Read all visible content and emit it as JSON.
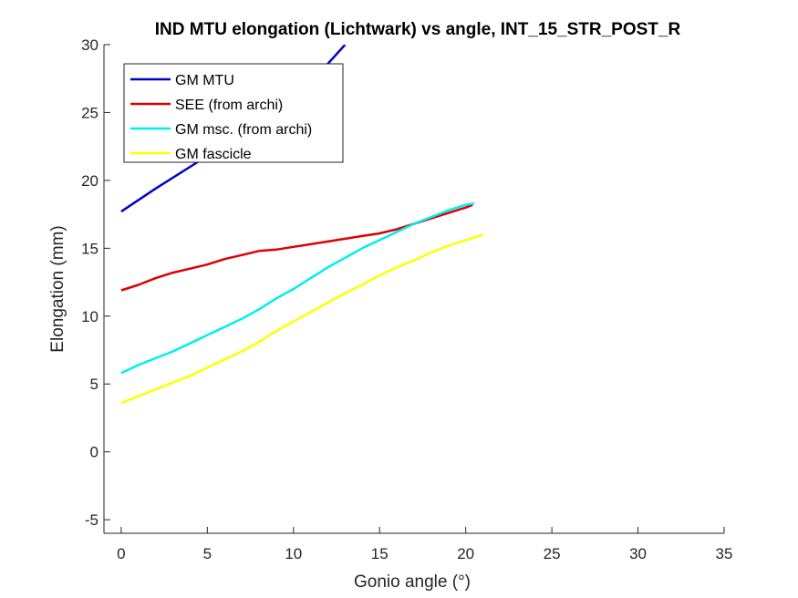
{
  "chart_data": {
    "type": "line",
    "title": "IND MTU elongation (Lichtwark) vs angle, INT_15_STR_POST_R",
    "xlabel": "Gonio angle (°)",
    "ylabel": "Elongation (mm)",
    "xlim": [
      -1,
      35
    ],
    "ylim": [
      -6,
      30
    ],
    "xticks": [
      "0",
      "5",
      "10",
      "15",
      "20",
      "25",
      "30",
      "35"
    ],
    "yticks": [
      "-5",
      "0",
      "5",
      "10",
      "15",
      "20",
      "25",
      "30"
    ],
    "xtick_values": [
      0,
      5,
      10,
      15,
      20,
      25,
      30,
      35
    ],
    "ytick_values": [
      -5,
      0,
      5,
      10,
      15,
      20,
      25,
      30
    ],
    "grid": false,
    "legend_position": "top-left",
    "series": [
      {
        "name": "GM MTU",
        "color": "#0000cc",
        "x": [
          0,
          2,
          4,
          6,
          8,
          10,
          12,
          13
        ],
        "y": [
          17.7,
          19.4,
          21.0,
          22.6,
          24.3,
          26.2,
          28.6,
          30.0
        ]
      },
      {
        "name": "SEE (from archi)",
        "color": "#dd0000",
        "x": [
          0,
          1,
          2,
          3,
          4,
          5,
          6,
          7,
          8,
          9,
          10,
          11,
          12,
          13,
          14,
          15,
          16,
          17,
          18,
          19,
          20,
          20.4
        ],
        "y": [
          11.9,
          12.3,
          12.8,
          13.2,
          13.5,
          13.8,
          14.2,
          14.5,
          14.8,
          14.9,
          15.1,
          15.3,
          15.5,
          15.7,
          15.9,
          16.1,
          16.4,
          16.8,
          17.2,
          17.6,
          18.0,
          18.2
        ]
      },
      {
        "name": "GM msc. (from archi)",
        "color": "#00eeee",
        "x": [
          0,
          1,
          2,
          3,
          4,
          5,
          6,
          7,
          8,
          9,
          10,
          11,
          12,
          13,
          14,
          15,
          16,
          17,
          18,
          19,
          20,
          20.5
        ],
        "y": [
          5.8,
          6.4,
          6.9,
          7.4,
          8.0,
          8.6,
          9.2,
          9.8,
          10.5,
          11.3,
          12.0,
          12.8,
          13.6,
          14.3,
          15.0,
          15.6,
          16.2,
          16.8,
          17.3,
          17.8,
          18.2,
          18.3
        ]
      },
      {
        "name": "GM fascicle",
        "color": "#ffff00",
        "x": [
          0,
          1,
          2,
          3,
          4,
          5,
          6,
          7,
          8,
          9,
          10,
          11,
          12,
          13,
          14,
          15,
          16,
          17,
          18,
          19,
          20,
          21
        ],
        "y": [
          3.6,
          4.1,
          4.6,
          5.1,
          5.6,
          6.2,
          6.8,
          7.4,
          8.1,
          8.9,
          9.6,
          10.3,
          11.0,
          11.7,
          12.3,
          13.0,
          13.6,
          14.1,
          14.7,
          15.2,
          15.6,
          16.0
        ]
      }
    ]
  }
}
